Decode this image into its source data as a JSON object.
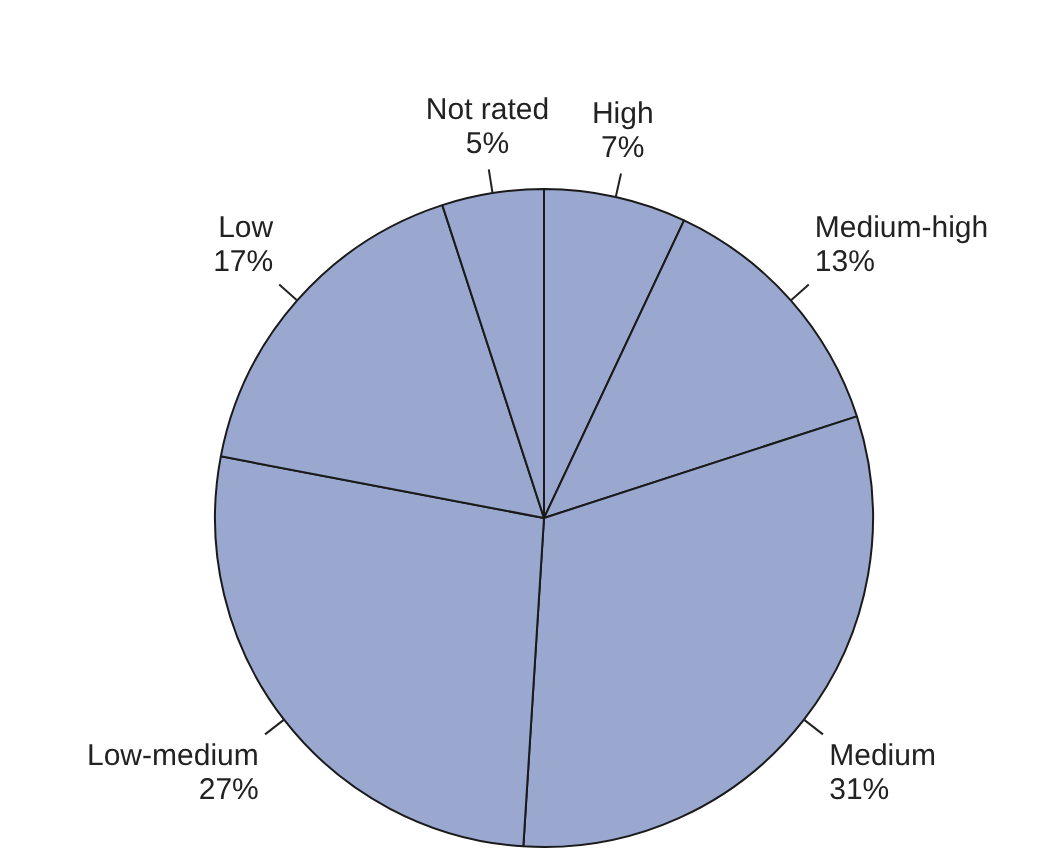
{
  "chart_data": {
    "type": "pie",
    "categories": [
      "High",
      "Medium-high",
      "Medium",
      "Low-medium",
      "Low",
      "Not rated"
    ],
    "values": [
      7,
      13,
      31,
      27,
      17,
      5
    ],
    "value_labels": [
      "7%",
      "13%",
      "31%",
      "27%",
      "17%",
      "5%"
    ],
    "colors": [
      "#9aa8d0",
      "#9aa8d0",
      "#9aa8d0",
      "#9aa8d0",
      "#9aa8d0",
      "#9aa8d0"
    ],
    "legend": false
  }
}
